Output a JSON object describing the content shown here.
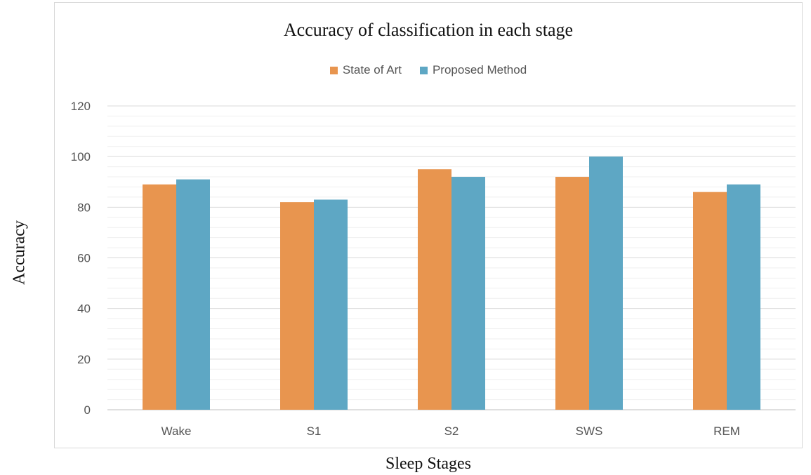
{
  "chart_data": {
    "type": "bar",
    "title": "Accuracy of classification in each stage",
    "xlabel": "Sleep Stages",
    "ylabel": "Accuracy",
    "categories": [
      "Wake",
      "S1",
      "S2",
      "SWS",
      "REM"
    ],
    "series": [
      {
        "name": "State of Art",
        "color": "#E8954F",
        "values": [
          89,
          82,
          95,
          92,
          86
        ]
      },
      {
        "name": "Proposed Method",
        "color": "#5EA7C4",
        "values": [
          91,
          83,
          92,
          100,
          89
        ]
      }
    ],
    "ylim": [
      0,
      120
    ],
    "yticks": [
      0,
      20,
      40,
      60,
      80,
      100,
      120
    ],
    "grid": true,
    "legend_position": "top"
  }
}
